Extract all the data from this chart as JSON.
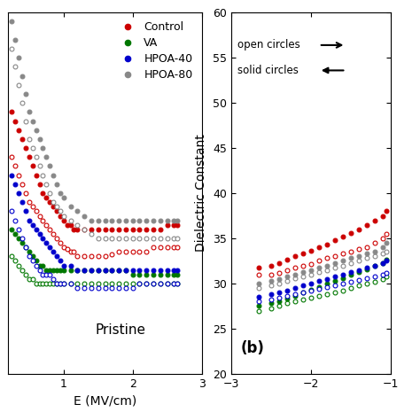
{
  "fig_width": 4.74,
  "fig_height": 4.74,
  "dpi": 100,
  "left_panel": {
    "xlabel": "E (MV/cm)",
    "annotation": "Pristine",
    "xlim": [
      0.2,
      3.0
    ],
    "xticks": [
      1,
      2,
      3
    ],
    "ylim": [
      20,
      60
    ],
    "series": [
      {
        "label": "Control",
        "color": "#cc0000",
        "open_x": [
          0.25,
          0.3,
          0.35,
          0.4,
          0.45,
          0.5,
          0.55,
          0.6,
          0.65,
          0.7,
          0.75,
          0.8,
          0.85,
          0.9,
          0.95,
          1.0,
          1.05,
          1.1,
          1.15,
          1.2,
          1.3,
          1.4,
          1.5,
          1.6,
          1.7,
          1.8,
          1.9,
          2.0,
          2.1,
          2.2,
          2.3,
          2.4,
          2.5,
          2.6,
          2.65
        ],
        "open_y": [
          44,
          43,
          42,
          41,
          40,
          39,
          38.5,
          38,
          37.5,
          37,
          36.5,
          36,
          35.5,
          35,
          34.5,
          34,
          33.8,
          33.5,
          33.5,
          33,
          33,
          33,
          33,
          33,
          33.2,
          33.5,
          33.5,
          33.5,
          33.5,
          33.5,
          34,
          34,
          34,
          34,
          34
        ],
        "solid_x": [
          0.25,
          0.3,
          0.35,
          0.4,
          0.45,
          0.5,
          0.55,
          0.6,
          0.65,
          0.7,
          0.75,
          0.8,
          0.85,
          0.9,
          0.95,
          1.0,
          1.05,
          1.1,
          1.15,
          1.2,
          1.3,
          1.4,
          1.5,
          1.6,
          1.7,
          1.8,
          1.9,
          2.0,
          2.1,
          2.2,
          2.3,
          2.4,
          2.5,
          2.6,
          2.65
        ],
        "solid_y": [
          49,
          48,
          47,
          46,
          45,
          44,
          43,
          42,
          41,
          40,
          39.5,
          39,
          38.5,
          38,
          37.5,
          37,
          36.5,
          36.5,
          36,
          36,
          36,
          36,
          36,
          36,
          36,
          36,
          36,
          36,
          36,
          36,
          36,
          36,
          36.5,
          36.5,
          36.5
        ]
      },
      {
        "label": "VA",
        "color": "#007700",
        "open_x": [
          0.25,
          0.3,
          0.35,
          0.4,
          0.45,
          0.5,
          0.55,
          0.6,
          0.65,
          0.7,
          0.75,
          0.8,
          0.85,
          0.9,
          0.95,
          1.0,
          1.1,
          1.2,
          1.3,
          1.4,
          1.5,
          1.6,
          1.7,
          1.8,
          1.9,
          2.0,
          2.1,
          2.2,
          2.3,
          2.4,
          2.5,
          2.6,
          2.65
        ],
        "open_y": [
          33,
          32.5,
          32,
          31.5,
          31,
          30.5,
          30.5,
          30,
          30,
          30,
          30,
          30,
          30,
          30,
          30,
          30,
          30,
          30,
          30,
          30,
          30,
          30,
          30,
          30,
          30,
          30,
          30,
          30,
          30,
          30,
          30,
          30,
          30
        ],
        "solid_x": [
          0.25,
          0.3,
          0.35,
          0.4,
          0.45,
          0.5,
          0.55,
          0.6,
          0.65,
          0.7,
          0.75,
          0.8,
          0.85,
          0.9,
          0.95,
          1.0,
          1.1,
          1.2,
          1.3,
          1.4,
          1.5,
          1.6,
          1.7,
          1.8,
          1.9,
          2.0,
          2.1,
          2.2,
          2.3,
          2.4,
          2.5,
          2.6,
          2.65
        ],
        "solid_y": [
          36,
          35.5,
          35,
          34.5,
          34,
          33.5,
          33,
          32.5,
          32,
          32,
          31.5,
          31.5,
          31.5,
          31.5,
          31.5,
          31.5,
          31.5,
          31.5,
          31.5,
          31.5,
          31.5,
          31.5,
          31.5,
          31.5,
          31.5,
          31,
          31,
          31,
          31,
          31,
          31,
          31,
          31
        ]
      },
      {
        "label": "HPOA-40",
        "color": "#0000cc",
        "open_x": [
          0.25,
          0.3,
          0.35,
          0.4,
          0.45,
          0.5,
          0.55,
          0.6,
          0.65,
          0.7,
          0.75,
          0.8,
          0.85,
          0.9,
          0.95,
          1.0,
          1.1,
          1.2,
          1.3,
          1.4,
          1.5,
          1.6,
          1.7,
          1.8,
          1.9,
          2.0,
          2.1,
          2.2,
          2.3,
          2.4,
          2.5,
          2.6,
          2.65
        ],
        "open_y": [
          38,
          37,
          36,
          35,
          34,
          33,
          32.5,
          32,
          31.5,
          31,
          31,
          31,
          30.5,
          30,
          30,
          30,
          30,
          29.5,
          29.5,
          29.5,
          29.5,
          29.5,
          29.5,
          29.5,
          29.5,
          29.5,
          30,
          30,
          30,
          30,
          30,
          30,
          30
        ],
        "solid_x": [
          0.25,
          0.3,
          0.35,
          0.4,
          0.45,
          0.5,
          0.55,
          0.6,
          0.65,
          0.7,
          0.75,
          0.8,
          0.85,
          0.9,
          0.95,
          1.0,
          1.1,
          1.2,
          1.3,
          1.4,
          1.5,
          1.6,
          1.7,
          1.8,
          1.9,
          2.0,
          2.1,
          2.2,
          2.3,
          2.4,
          2.5,
          2.6,
          2.65
        ],
        "solid_y": [
          42,
          41,
          40,
          39,
          38,
          37,
          36.5,
          36,
          35.5,
          35,
          34.5,
          34,
          33.5,
          33,
          32.5,
          32,
          32,
          31.5,
          31.5,
          31.5,
          31.5,
          31.5,
          31.5,
          31.5,
          31.5,
          31.5,
          31.5,
          31.5,
          31.5,
          31.5,
          31.5,
          31.5,
          31.5
        ]
      },
      {
        "label": "HPOA-80",
        "color": "#888888",
        "open_x": [
          0.25,
          0.3,
          0.35,
          0.4,
          0.45,
          0.5,
          0.55,
          0.6,
          0.65,
          0.7,
          0.75,
          0.8,
          0.85,
          0.9,
          0.95,
          1.0,
          1.1,
          1.2,
          1.3,
          1.4,
          1.5,
          1.6,
          1.7,
          1.8,
          1.9,
          2.0,
          2.1,
          2.2,
          2.3,
          2.4,
          2.5,
          2.6,
          2.65
        ],
        "open_y": [
          56,
          54,
          52,
          50,
          48,
          46,
          45,
          44,
          43,
          42,
          41,
          40,
          39,
          38.5,
          38,
          37.5,
          37,
          36.5,
          36,
          35.5,
          35,
          35,
          35,
          35,
          35,
          35,
          35,
          35,
          35,
          35,
          35,
          35,
          35
        ],
        "solid_x": [
          0.25,
          0.3,
          0.35,
          0.4,
          0.45,
          0.5,
          0.55,
          0.6,
          0.65,
          0.7,
          0.75,
          0.8,
          0.85,
          0.9,
          0.95,
          1.0,
          1.1,
          1.2,
          1.3,
          1.4,
          1.5,
          1.6,
          1.7,
          1.8,
          1.9,
          2.0,
          2.1,
          2.2,
          2.3,
          2.4,
          2.5,
          2.6,
          2.65
        ],
        "solid_y": [
          59,
          57,
          55,
          53,
          51,
          49,
          48,
          47,
          46,
          45,
          44,
          43,
          42,
          41,
          40,
          39.5,
          38.5,
          38,
          37.5,
          37,
          37,
          37,
          37,
          37,
          37,
          37,
          37,
          37,
          37,
          37,
          37,
          37,
          37
        ]
      }
    ]
  },
  "right_panel": {
    "ylabel": "Dielectric Constant",
    "annotation": "(b)",
    "xlim": [
      -3.0,
      -1.0
    ],
    "xticks": [
      -3,
      -2,
      -1
    ],
    "ylim": [
      20,
      60
    ],
    "yticks": [
      20,
      25,
      30,
      35,
      40,
      45,
      50,
      55,
      60
    ],
    "series": [
      {
        "label": "Control",
        "color": "#cc0000",
        "open_x": [
          -2.65,
          -2.5,
          -2.4,
          -2.3,
          -2.2,
          -2.1,
          -2.0,
          -1.9,
          -1.8,
          -1.7,
          -1.6,
          -1.5,
          -1.4,
          -1.3,
          -1.2,
          -1.1,
          -1.05
        ],
        "open_y": [
          31.0,
          31.0,
          31.2,
          31.5,
          31.8,
          32.0,
          32.2,
          32.5,
          32.8,
          33.0,
          33.3,
          33.5,
          33.8,
          34.0,
          34.5,
          35.0,
          35.5
        ],
        "solid_x": [
          -2.65,
          -2.5,
          -2.4,
          -2.3,
          -2.2,
          -2.1,
          -2.0,
          -1.9,
          -1.8,
          -1.7,
          -1.6,
          -1.5,
          -1.4,
          -1.3,
          -1.2,
          -1.1,
          -1.05
        ],
        "solid_y": [
          31.8,
          32.0,
          32.3,
          32.6,
          33.0,
          33.3,
          33.6,
          34.0,
          34.3,
          34.8,
          35.2,
          35.6,
          36.0,
          36.5,
          37.0,
          37.5,
          38.0
        ]
      },
      {
        "label": "VA",
        "color": "#007700",
        "open_x": [
          -2.65,
          -2.5,
          -2.4,
          -2.3,
          -2.2,
          -2.1,
          -2.0,
          -1.9,
          -1.8,
          -1.7,
          -1.6,
          -1.5,
          -1.4,
          -1.3,
          -1.2,
          -1.1,
          -1.05
        ],
        "open_y": [
          27.0,
          27.2,
          27.5,
          27.8,
          28.0,
          28.2,
          28.4,
          28.6,
          28.8,
          29.0,
          29.2,
          29.5,
          29.8,
          30.0,
          30.2,
          30.5,
          30.8
        ],
        "solid_x": [
          -2.65,
          -2.5,
          -2.4,
          -2.3,
          -2.2,
          -2.1,
          -2.0,
          -1.9,
          -1.8,
          -1.7,
          -1.6,
          -1.5,
          -1.4,
          -1.3,
          -1.2,
          -1.1,
          -1.05
        ],
        "solid_y": [
          27.5,
          27.8,
          28.0,
          28.3,
          28.6,
          29.0,
          29.3,
          29.6,
          30.0,
          30.3,
          30.6,
          31.0,
          31.3,
          31.6,
          32.0,
          32.3,
          32.6
        ]
      },
      {
        "label": "HPOA-40",
        "color": "#0000cc",
        "open_x": [
          -2.65,
          -2.5,
          -2.4,
          -2.3,
          -2.2,
          -2.1,
          -2.0,
          -1.9,
          -1.8,
          -1.7,
          -1.6,
          -1.5,
          -1.4,
          -1.3,
          -1.2,
          -1.1,
          -1.05
        ],
        "open_y": [
          28.0,
          28.2,
          28.4,
          28.6,
          28.8,
          29.0,
          29.2,
          29.4,
          29.6,
          29.8,
          30.0,
          30.2,
          30.4,
          30.6,
          30.8,
          31.0,
          31.2
        ],
        "solid_x": [
          -2.65,
          -2.5,
          -2.4,
          -2.3,
          -2.2,
          -2.1,
          -2.0,
          -1.9,
          -1.8,
          -1.7,
          -1.6,
          -1.5,
          -1.4,
          -1.3,
          -1.2,
          -1.1,
          -1.05
        ],
        "solid_y": [
          28.5,
          28.8,
          29.0,
          29.2,
          29.5,
          29.8,
          30.0,
          30.3,
          30.5,
          30.8,
          31.0,
          31.3,
          31.5,
          31.8,
          32.0,
          32.3,
          32.5
        ]
      },
      {
        "label": "HPOA-80",
        "color": "#888888",
        "open_x": [
          -2.65,
          -2.5,
          -2.4,
          -2.3,
          -2.2,
          -2.1,
          -2.0,
          -1.9,
          -1.8,
          -1.7,
          -1.6,
          -1.5,
          -1.4,
          -1.3,
          -1.2,
          -1.1,
          -1.05
        ],
        "open_y": [
          29.5,
          29.8,
          30.0,
          30.3,
          30.6,
          30.8,
          31.0,
          31.3,
          31.5,
          31.8,
          32.0,
          32.3,
          32.5,
          32.8,
          33.0,
          33.3,
          33.5
        ],
        "solid_x": [
          -2.65,
          -2.5,
          -2.4,
          -2.3,
          -2.2,
          -2.1,
          -2.0,
          -1.9,
          -1.8,
          -1.7,
          -1.6,
          -1.5,
          -1.4,
          -1.3,
          -1.2,
          -1.1,
          -1.05
        ],
        "solid_y": [
          30.0,
          30.3,
          30.5,
          30.8,
          31.0,
          31.3,
          31.5,
          31.8,
          32.0,
          32.3,
          32.5,
          32.8,
          33.0,
          33.3,
          33.5,
          34.0,
          34.5
        ]
      }
    ]
  },
  "legend_labels": [
    "Control",
    "VA",
    "HPOA-40",
    "HPOA-80"
  ],
  "legend_colors": [
    "#cc0000",
    "#007700",
    "#0000cc",
    "#888888"
  ],
  "marker_size": 3.5,
  "background_color": "#ffffff"
}
